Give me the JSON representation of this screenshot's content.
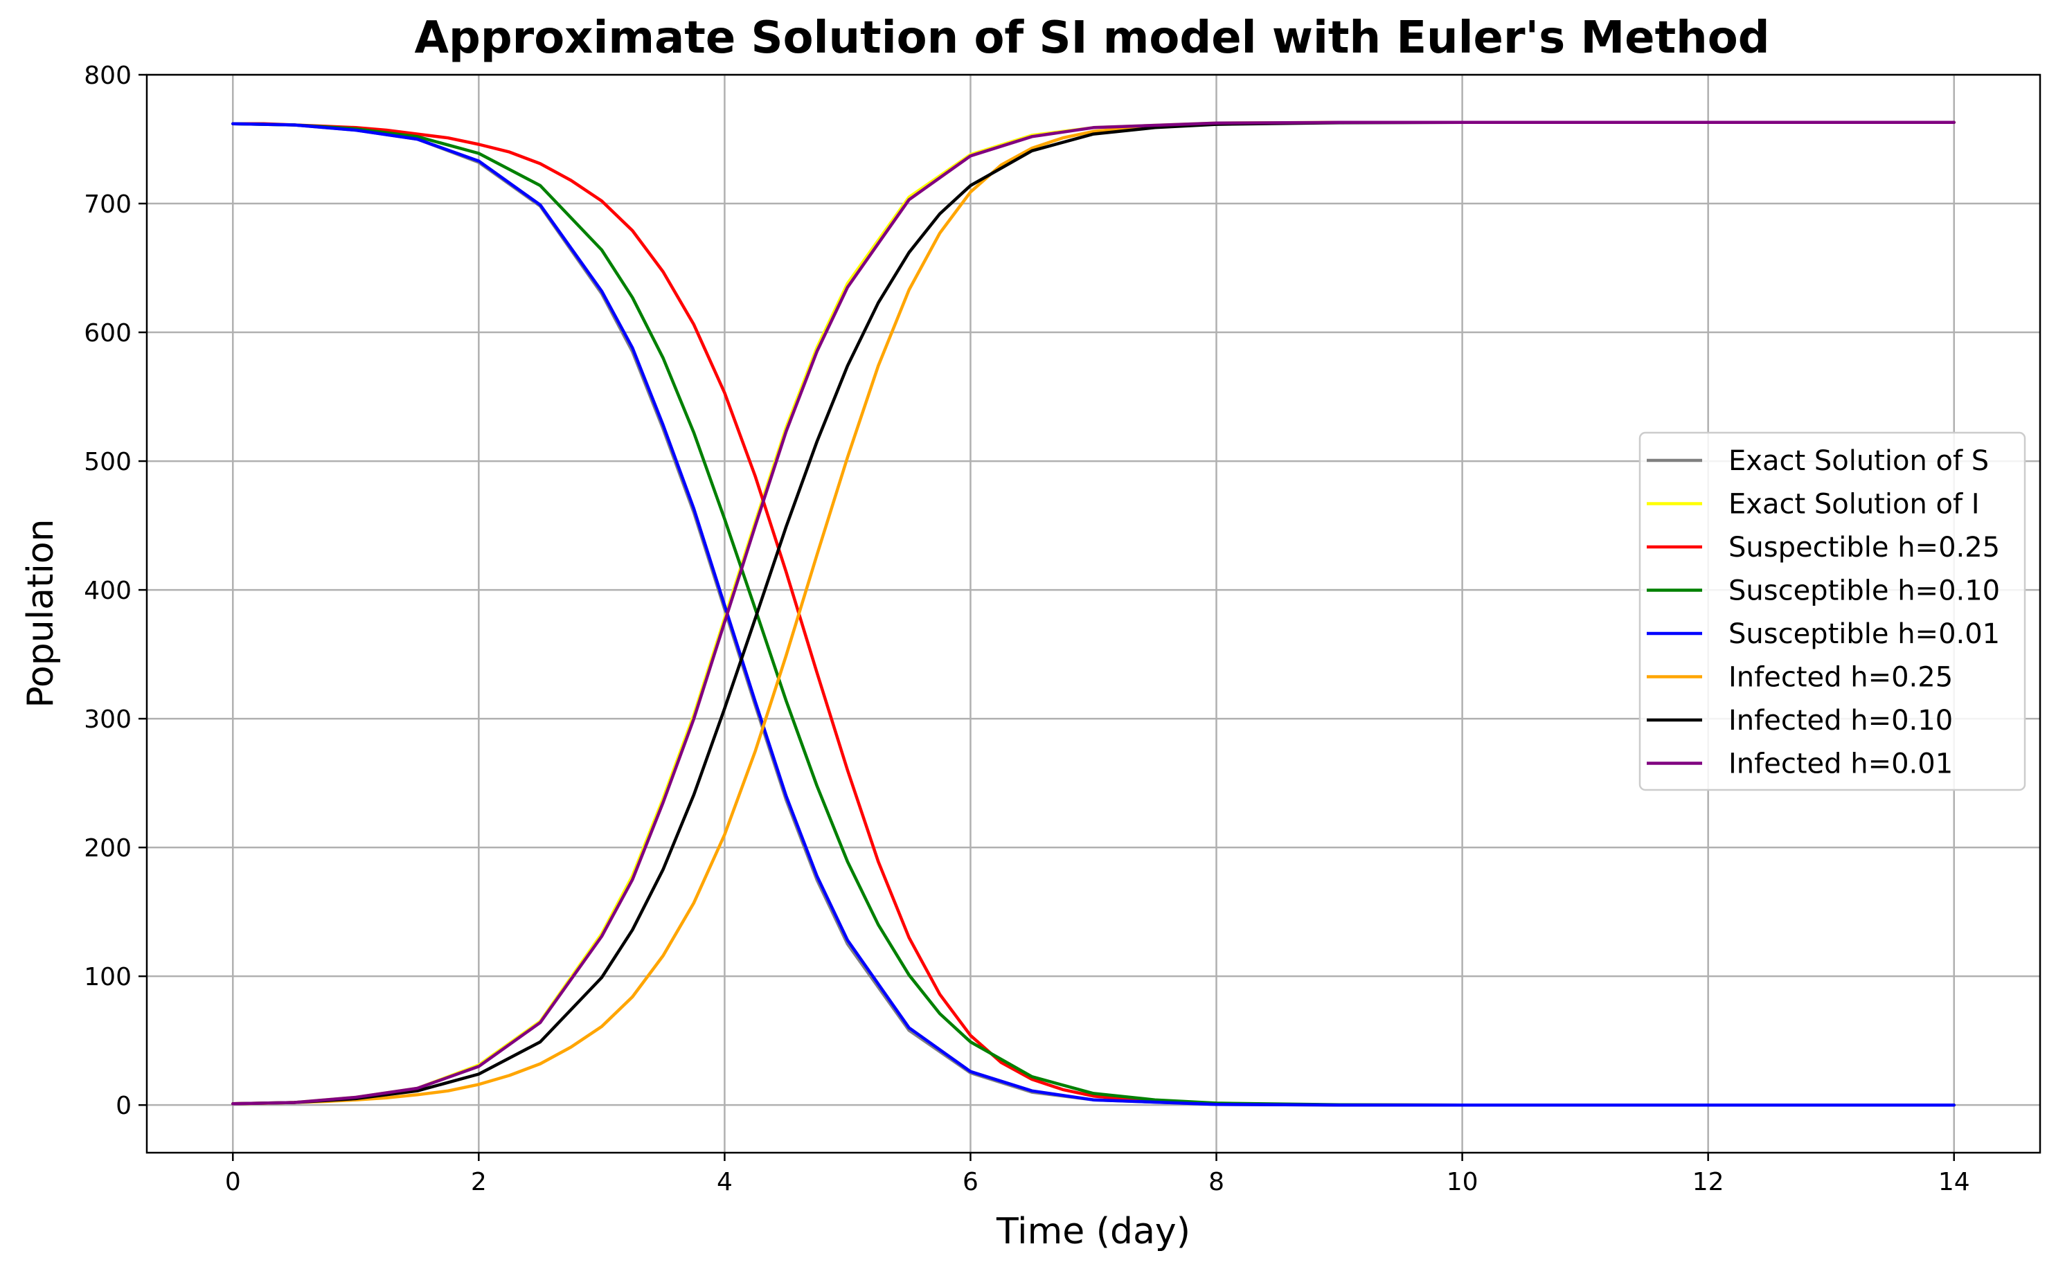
{
  "chart_data": {
    "type": "line",
    "title": "Approximate Solution of SI model with Euler's Method",
    "xlabel": "Time (day)",
    "ylabel": "Population",
    "xlim": [
      -0.7,
      14.7
    ],
    "ylim": [
      -37,
      800
    ],
    "xticks": [
      "0",
      "2",
      "4",
      "6",
      "8",
      "10",
      "12",
      "14"
    ],
    "yticks": [
      "0",
      "100",
      "200",
      "300",
      "400",
      "500",
      "600",
      "700",
      "800"
    ],
    "grid": true,
    "legend_position": "center-right",
    "series": [
      {
        "name": "Exact Solution of S",
        "color": "#808080",
        "x": [
          0,
          0.5,
          1,
          1.5,
          2,
          2.5,
          3,
          3.25,
          3.5,
          3.75,
          4,
          4.25,
          4.5,
          4.75,
          5,
          5.5,
          6,
          6.5,
          7,
          8,
          9,
          10,
          12,
          14
        ],
        "y": [
          762,
          761,
          757,
          750,
          732,
          698,
          630,
          585,
          525,
          460,
          385,
          310,
          237,
          175,
          125,
          58,
          25,
          10,
          4,
          0.5,
          0,
          0,
          0,
          0
        ]
      },
      {
        "name": "Exact Solution of I",
        "color": "#ffff00",
        "x": [
          0,
          0.5,
          1,
          1.5,
          2,
          2.5,
          3,
          3.25,
          3.5,
          3.75,
          4,
          4.25,
          4.5,
          4.75,
          5,
          5.5,
          6,
          6.5,
          7,
          8,
          9,
          10,
          12,
          14
        ],
        "y": [
          1,
          2,
          6,
          13,
          31,
          65,
          133,
          178,
          238,
          303,
          378,
          453,
          526,
          588,
          638,
          705,
          738,
          753,
          759,
          762.5,
          763,
          763,
          763,
          763
        ]
      },
      {
        "name": "Suspectible h=0.25",
        "color": "#ff0000",
        "x": [
          0,
          0.25,
          0.5,
          0.75,
          1,
          1.25,
          1.5,
          1.75,
          2,
          2.25,
          2.5,
          2.75,
          3,
          3.25,
          3.5,
          3.75,
          4,
          4.25,
          4.5,
          4.75,
          5,
          5.25,
          5.5,
          5.75,
          6,
          6.25,
          6.5,
          6.75,
          7,
          7.5,
          8,
          9,
          10,
          12,
          14
        ],
        "y": [
          762,
          762,
          761,
          760,
          759,
          757,
          754,
          751,
          746,
          740,
          731,
          718,
          702,
          679,
          647,
          606,
          553,
          488,
          414,
          336,
          260,
          189,
          130,
          86,
          54,
          33,
          20,
          12,
          7,
          2.5,
          1,
          0.1,
          0,
          0,
          0
        ]
      },
      {
        "name": "Susceptible h=0.10",
        "color": "#008000",
        "x": [
          0,
          0.5,
          1,
          1.5,
          2,
          2.5,
          3,
          3.25,
          3.5,
          3.75,
          4,
          4.25,
          4.5,
          4.75,
          5,
          5.25,
          5.5,
          5.75,
          6,
          6.5,
          7,
          7.5,
          8,
          9,
          10,
          12,
          14
        ],
        "y": [
          762,
          761,
          758,
          752,
          739,
          714,
          664,
          627,
          580,
          522,
          455,
          385,
          314,
          248,
          189,
          140,
          101,
          71,
          49,
          22,
          9,
          4,
          1.5,
          0.2,
          0,
          0,
          0
        ]
      },
      {
        "name": "Susceptible h=0.01",
        "color": "#0000ff",
        "x": [
          0,
          0.5,
          1,
          1.5,
          2,
          2.5,
          3,
          3.25,
          3.5,
          3.75,
          4,
          4.25,
          4.5,
          4.75,
          5,
          5.5,
          6,
          6.5,
          7,
          8,
          9,
          10,
          12,
          14
        ],
        "y": [
          762,
          761,
          757,
          750,
          733,
          699,
          632,
          588,
          528,
          463,
          388,
          313,
          240,
          178,
          128,
          60,
          26,
          11,
          4,
          0.5,
          0,
          0,
          0,
          0
        ]
      },
      {
        "name": "Infected h=0.25",
        "color": "#ffa500",
        "x": [
          0,
          0.25,
          0.5,
          0.75,
          1,
          1.25,
          1.5,
          1.75,
          2,
          2.25,
          2.5,
          2.75,
          3,
          3.25,
          3.5,
          3.75,
          4,
          4.25,
          4.5,
          4.75,
          5,
          5.25,
          5.5,
          5.75,
          6,
          6.25,
          6.5,
          6.75,
          7,
          7.5,
          8,
          9,
          10,
          12,
          14
        ],
        "y": [
          1,
          1.4,
          2,
          2.8,
          4,
          5.6,
          8,
          11,
          16,
          23,
          32,
          45,
          61,
          84,
          116,
          157,
          210,
          275,
          349,
          427,
          503,
          574,
          633,
          677,
          709,
          730,
          743,
          751,
          756,
          760,
          762,
          763,
          763,
          763,
          763
        ]
      },
      {
        "name": "Infected h=0.10",
        "color": "#000000",
        "x": [
          0,
          0.5,
          1,
          1.5,
          2,
          2.5,
          3,
          3.25,
          3.5,
          3.75,
          4,
          4.25,
          4.5,
          4.75,
          5,
          5.25,
          5.5,
          5.75,
          6,
          6.5,
          7,
          7.5,
          8,
          9,
          10,
          12,
          14
        ],
        "y": [
          1,
          2,
          5,
          11,
          24,
          49,
          99,
          136,
          183,
          241,
          308,
          378,
          449,
          515,
          574,
          623,
          662,
          692,
          714,
          741,
          754,
          759,
          761.5,
          762.8,
          763,
          763,
          763
        ]
      },
      {
        "name": "Infected h=0.01",
        "color": "#800080",
        "x": [
          0,
          0.5,
          1,
          1.5,
          2,
          2.5,
          3,
          3.25,
          3.5,
          3.75,
          4,
          4.25,
          4.5,
          4.75,
          5,
          5.5,
          6,
          6.5,
          7,
          8,
          9,
          10,
          12,
          14
        ],
        "y": [
          1,
          2,
          6,
          13,
          30,
          64,
          131,
          175,
          235,
          300,
          375,
          450,
          523,
          585,
          635,
          703,
          737,
          752,
          759,
          762.5,
          763,
          763,
          763,
          763
        ]
      }
    ]
  }
}
